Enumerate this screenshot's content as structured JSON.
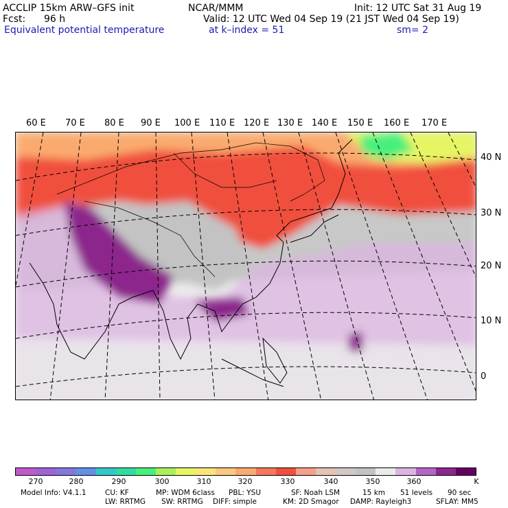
{
  "header": {
    "model": "ACCLIP 15km ARW–GFS init",
    "org": "NCAR/MMM",
    "init": "Init: 12 UTC Sat 31 Aug 19",
    "fcst_label": "Fcst:",
    "fcst_value": "96 h",
    "valid": "Valid: 12 UTC Wed 04 Sep 19 (21 JST Wed 04 Sep 19)",
    "field": "Equivalent potential temperature",
    "level": "at k–index =  51",
    "smooth": "sm= 2"
  },
  "map": {
    "lon_labels": [
      "60 E",
      "70 E",
      "80 E",
      "90 E",
      "100 E",
      "110 E",
      "120 E",
      "130 E",
      "140 E",
      "150 E",
      "160 E",
      "170 E"
    ],
    "lat_labels": [
      "40 N",
      "30 N",
      "20 N",
      "10 N",
      "0"
    ]
  },
  "colorbar": {
    "colors": [
      "#c05ac8",
      "#a064d2",
      "#8278dc",
      "#6490e6",
      "#32c8c8",
      "#32dca0",
      "#46f07d",
      "#aaf05a",
      "#e6f564",
      "#fae678",
      "#fac882",
      "#faaa6e",
      "#f5785a",
      "#f0503c",
      "#f5a08c",
      "#e6c3b4",
      "#d2c8c3",
      "#c3c3c3",
      "#ebebeb",
      "#dcb4e1",
      "#b464c8",
      "#8c288c",
      "#640064"
    ],
    "ticks": [
      "270",
      "280",
      "290",
      "300",
      "310",
      "320",
      "330",
      "340",
      "350",
      "360"
    ],
    "unit": "K"
  },
  "footer": {
    "line1": [
      "Model Info: V4.1.1",
      "CU: KF",
      "MP: WDM 6class",
      "PBL: YSU",
      "SF: Noah LSM",
      "15 km",
      "51 levels",
      "90 sec"
    ],
    "line2": [
      "LW: RRTMG",
      "SW: RRTMG",
      "DIFF: simple",
      "KM: 2D Smagor",
      "DAMP: Rayleigh3",
      "SFLAY: MM5"
    ]
  }
}
